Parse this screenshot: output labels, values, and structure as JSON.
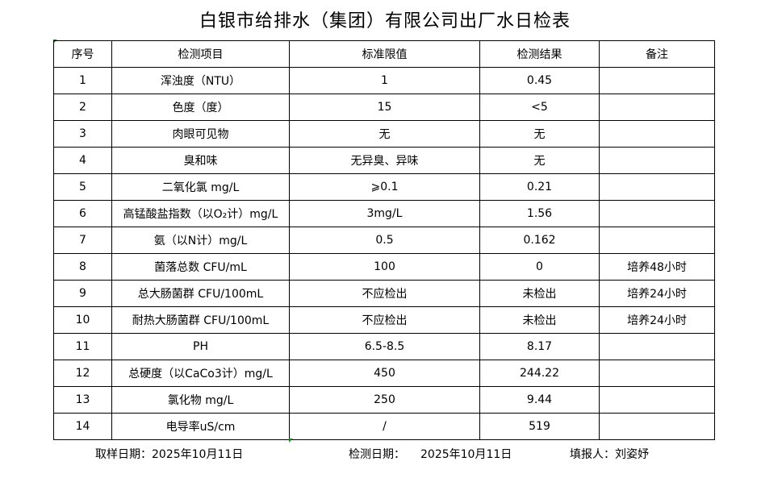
{
  "title": "白银市给排水（集团）有限公司出厂水日检表",
  "headers": [
    "序号",
    "检测项目",
    "标准限值",
    "检测结果",
    "备注"
  ],
  "rows": [
    [
      "1",
      "浑浊度（NTU）",
      "1",
      "0.45",
      ""
    ],
    [
      "2",
      "色度（度）",
      "15",
      "<5",
      ""
    ],
    [
      "3",
      "肉眼可见物",
      "无",
      "无",
      ""
    ],
    [
      "4",
      "臭和味",
      "无异臭、异味",
      "无",
      ""
    ],
    [
      "5",
      "二氧化氯 mg/L",
      "⩾0.1",
      "0.21",
      ""
    ],
    [
      "6",
      "高锰酸盐指数（以O₂计）mg/L",
      "3mg/L",
      "1.56",
      ""
    ],
    [
      "7",
      "氨（以N计）mg/L",
      "0.5",
      "0.162",
      ""
    ],
    [
      "8",
      "菌落总数 CFU/mL",
      "100",
      "0",
      "培养48小时"
    ],
    [
      "9",
      "总大肠菌群 CFU/100mL",
      "不应检出",
      "未检出",
      "培养24小时"
    ],
    [
      "10",
      "耐热大肠菌群 CFU/100mL",
      "不应检出",
      "未检出",
      "培养24小时"
    ],
    [
      "11",
      "PH",
      "6.5-8.5",
      "8.17",
      ""
    ],
    [
      "12",
      "总硬度（以CaCo3计）mg/L",
      "450",
      "244.22",
      ""
    ],
    [
      "13",
      "氯化物 mg/L",
      "250",
      "9.44",
      ""
    ],
    [
      "14",
      "电导率uS/cm",
      "/",
      "519",
      ""
    ]
  ],
  "footer": {
    "sample_date": "取样日期：2025年10月11日",
    "test_date_label": "检测日期：",
    "test_date": "2025年10月11日",
    "reporter": "填报人：刘姿妤"
  }
}
